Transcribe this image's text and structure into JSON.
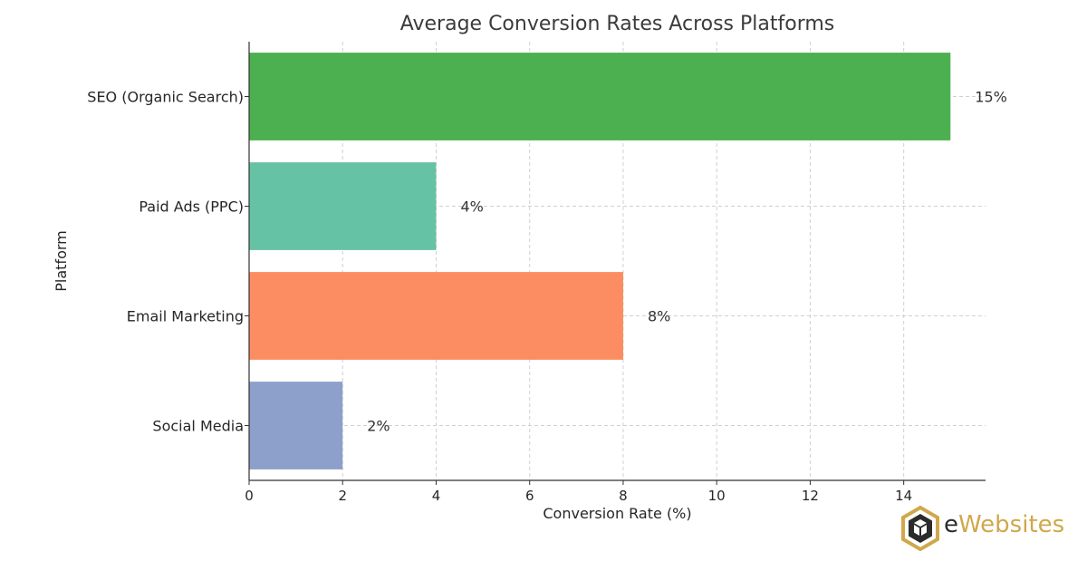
{
  "chart_data": {
    "type": "bar",
    "orientation": "horizontal",
    "title": "Average Conversion Rates Across Platforms",
    "xlabel": "Conversion Rate (%)",
    "ylabel": "Platform",
    "categories": [
      "SEO (Organic Search)",
      "Paid Ads (PPC)",
      "Email Marketing",
      "Social Media"
    ],
    "values": [
      15,
      4,
      8,
      2
    ],
    "data_labels": [
      "15%",
      "4%",
      "8%",
      "2%"
    ],
    "colors": [
      "#4caf50",
      "#66c2a5",
      "#fc8d62",
      "#8da0cb"
    ],
    "xlim": [
      0,
      15.75
    ],
    "xticks": [
      0,
      2,
      4,
      6,
      8,
      10,
      12,
      14
    ],
    "grid": true
  },
  "branding": {
    "logo_prefix": "e",
    "logo_suffix": "Websites",
    "logo_icon": "cube-logo-icon",
    "logo_color": "#d0a84b"
  }
}
